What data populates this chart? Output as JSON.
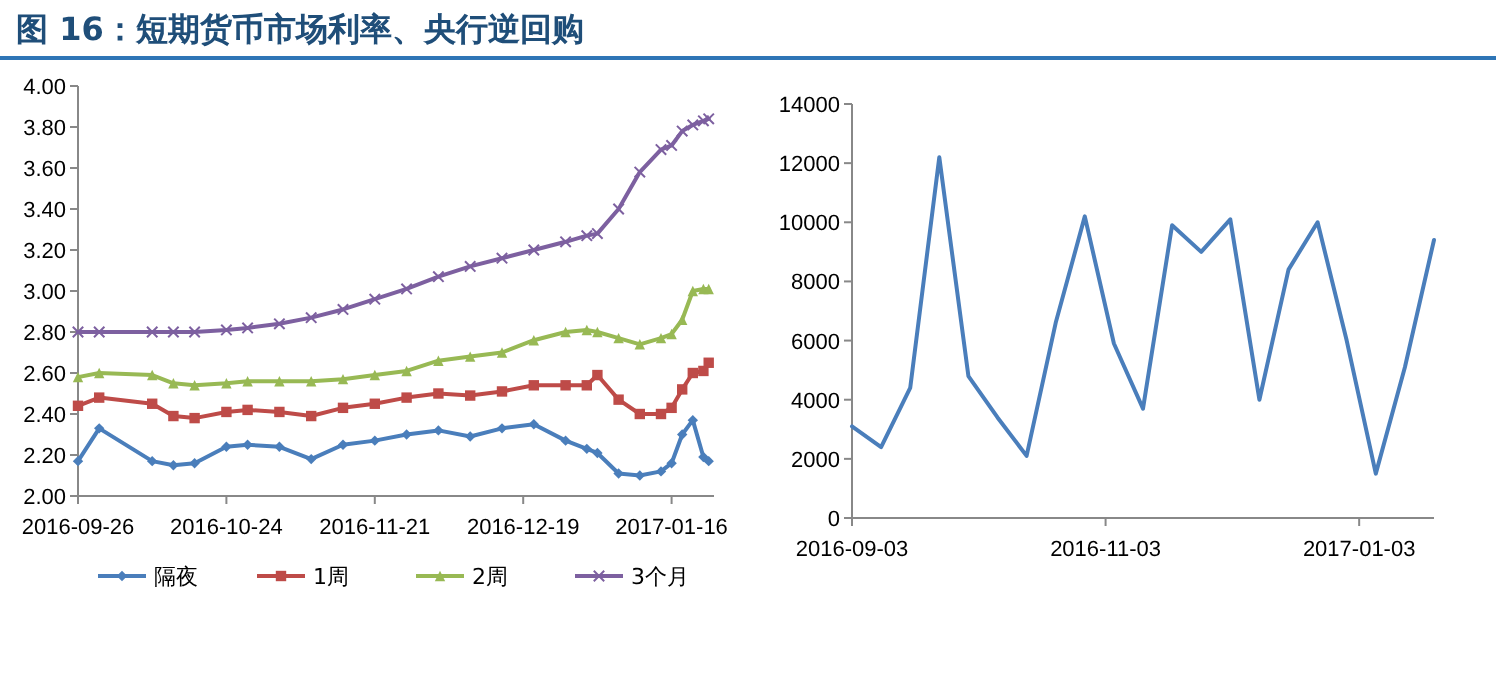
{
  "chart_data": [
    {
      "type": "line",
      "title": "图 16：短期货币市场利率、央行逆回购",
      "legend": "bottom",
      "x": [
        "2016-09-26",
        "2016-09-30",
        "2016-10-10",
        "2016-10-14",
        "2016-10-18",
        "2016-10-24",
        "2016-10-28",
        "2016-11-03",
        "2016-11-09",
        "2016-11-15",
        "2016-11-21",
        "2016-11-27",
        "2016-12-03",
        "2016-12-09",
        "2016-12-15",
        "2016-12-21",
        "2016-12-27",
        "2016-12-31",
        "2017-01-02",
        "2017-01-06",
        "2017-01-10",
        "2017-01-14",
        "2017-01-16",
        "2017-01-18",
        "2017-01-20",
        "2017-01-22",
        "2017-01-23"
      ],
      "xlim": [
        "2016-09-26",
        "2017-01-24"
      ],
      "xticks": [
        {
          "value": "2016-09-26",
          "label": "2016-09-26"
        },
        {
          "value": "2016-10-24",
          "label": "2016-10-24"
        },
        {
          "value": "2016-11-21",
          "label": "2016-11-21"
        },
        {
          "value": "2016-12-19",
          "label": "2016-12-19"
        },
        {
          "value": "2017-01-16",
          "label": "2017-01-16"
        }
      ],
      "ylim": [
        2,
        4
      ],
      "yticks": [
        {
          "value": 2,
          "label": "2.00"
        },
        {
          "value": 2.2,
          "label": "2.20"
        },
        {
          "value": 2.4,
          "label": "2.40"
        },
        {
          "value": 2.6,
          "label": "2.60"
        },
        {
          "value": 2.8,
          "label": "2.80"
        },
        {
          "value": 3,
          "label": "3.00"
        },
        {
          "value": 3.2,
          "label": "3.20"
        },
        {
          "value": 3.4,
          "label": "3.40"
        },
        {
          "value": 3.6,
          "label": "3.60"
        },
        {
          "value": 3.8,
          "label": "3.80"
        },
        {
          "value": 4,
          "label": "4.00"
        }
      ],
      "series": [
        {
          "name": "隔夜",
          "color": "#4a7ebb",
          "marker": "diamond",
          "values": [
            2.17,
            2.33,
            2.17,
            2.15,
            2.16,
            2.24,
            2.25,
            2.24,
            2.18,
            2.25,
            2.27,
            2.3,
            2.32,
            2.29,
            2.33,
            2.35,
            2.27,
            2.23,
            2.21,
            2.11,
            2.1,
            2.12,
            2.16,
            2.3,
            2.37,
            2.19,
            2.17
          ]
        },
        {
          "name": "1周",
          "color": "#be4b48",
          "marker": "square",
          "values": [
            2.44,
            2.48,
            2.45,
            2.39,
            2.38,
            2.41,
            2.42,
            2.41,
            2.39,
            2.43,
            2.45,
            2.48,
            2.5,
            2.49,
            2.51,
            2.54,
            2.54,
            2.54,
            2.59,
            2.47,
            2.4,
            2.4,
            2.43,
            2.52,
            2.6,
            2.61,
            2.65
          ]
        },
        {
          "name": "2周",
          "color": "#98b954",
          "marker": "triangle",
          "values": [
            2.58,
            2.6,
            2.59,
            2.55,
            2.54,
            2.55,
            2.56,
            2.56,
            2.56,
            2.57,
            2.59,
            2.61,
            2.66,
            2.68,
            2.7,
            2.76,
            2.8,
            2.81,
            2.8,
            2.77,
            2.74,
            2.77,
            2.79,
            2.86,
            3.0,
            3.01,
            3.01
          ]
        },
        {
          "name": "3个月",
          "color": "#7d60a0",
          "marker": "cross",
          "values": [
            2.8,
            2.8,
            2.8,
            2.8,
            2.8,
            2.81,
            2.82,
            2.84,
            2.87,
            2.91,
            2.96,
            3.01,
            3.07,
            3.12,
            3.16,
            3.2,
            3.24,
            3.27,
            3.28,
            3.4,
            3.58,
            3.69,
            3.71,
            3.78,
            3.81,
            3.83,
            3.84
          ]
        }
      ]
    },
    {
      "type": "line",
      "x": [
        "2016-09-03",
        "2016-09-10",
        "2016-09-17",
        "2016-09-24",
        "2016-10-01",
        "2016-10-08",
        "2016-10-15",
        "2016-10-22",
        "2016-10-29",
        "2016-11-05",
        "2016-11-12",
        "2016-11-19",
        "2016-11-26",
        "2016-12-03",
        "2016-12-10",
        "2016-12-17",
        "2016-12-24",
        "2016-12-31",
        "2017-01-07",
        "2017-01-14",
        "2017-01-21"
      ],
      "xlim": [
        "2016-09-03",
        "2017-01-21"
      ],
      "xticks": [
        {
          "value": "2016-09-03",
          "label": "2016-09-03"
        },
        {
          "value": "2016-11-03",
          "label": "2016-11-03"
        },
        {
          "value": "2017-01-03",
          "label": "2017-01-03"
        }
      ],
      "ylim": [
        0,
        14000
      ],
      "yticks": [
        0,
        2000,
        4000,
        6000,
        8000,
        10000,
        12000,
        14000
      ],
      "series": [
        {
          "color": "#4a7ebb",
          "values": [
            3100,
            2400,
            4400,
            12200,
            4800,
            3400,
            2100,
            6600,
            10200,
            5900,
            3700,
            9900,
            9000,
            10100,
            4000,
            8400,
            10000,
            6000,
            1500,
            5100,
            9400
          ]
        }
      ]
    }
  ]
}
